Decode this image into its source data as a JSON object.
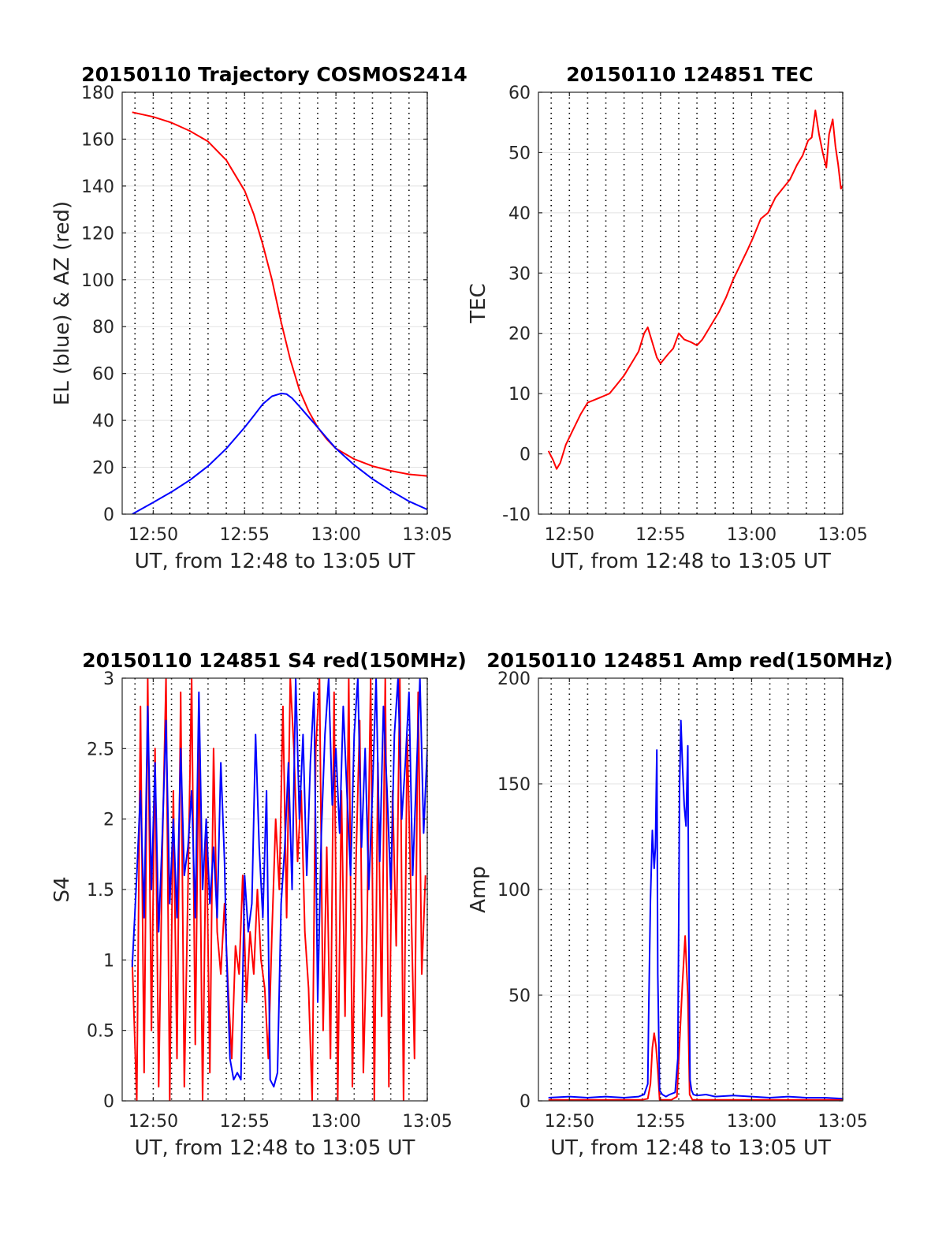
{
  "chart_data": [
    {
      "type": "line",
      "title": "20150110 Trajectory COSMOS2414",
      "xlabel": "UT, from 12:48 to 13:05 UT",
      "ylabel": "EL (blue) & AZ (red)",
      "x_unit": "minutes after 12:00 UT",
      "xlim": [
        48.3,
        65
      ],
      "ylim": [
        0,
        180
      ],
      "xticks": [
        "12:50",
        "12:55",
        "13:00",
        "13:05"
      ],
      "yticks": [
        "0",
        "20",
        "40",
        "60",
        "80",
        "100",
        "120",
        "140",
        "160",
        "180"
      ],
      "grid": "y major grid; dotted vertical lines every minute",
      "series": [
        {
          "color": "#ff0000",
          "x": [
            48.85,
            50,
            51,
            52,
            53,
            54,
            55,
            55.5,
            56,
            56.5,
            57,
            57.5,
            58,
            58.5,
            59,
            59.5,
            60,
            61,
            62,
            63,
            64,
            65
          ],
          "y": [
            171.5,
            169.5,
            167,
            163.5,
            159,
            151,
            138,
            128,
            115,
            100,
            82,
            66,
            53,
            44,
            37,
            32,
            28,
            23.5,
            20.5,
            18.5,
            17,
            16.3
          ]
        },
        {
          "color": "#0000ff",
          "x": [
            48.85,
            50,
            51,
            52,
            53,
            54,
            55,
            55.5,
            56,
            56.5,
            57,
            57.3,
            57.6,
            58,
            58.5,
            59,
            59.5,
            60,
            61,
            62,
            63,
            64,
            65
          ],
          "y": [
            0,
            5,
            9.5,
            14.5,
            20.5,
            28,
            37,
            42,
            47,
            50.3,
            51.5,
            51.2,
            49.5,
            46,
            41.5,
            37,
            32.5,
            28,
            21,
            15,
            10,
            5.5,
            2
          ]
        }
      ]
    },
    {
      "type": "line",
      "title": "20150110 124851 TEC",
      "xlabel": "UT, from 12:48 to 13:05 UT",
      "ylabel": "TEC",
      "x_unit": "minutes after 12:00 UT",
      "xlim": [
        48.3,
        65
      ],
      "ylim": [
        -10,
        60
      ],
      "xticks": [
        "12:50",
        "12:55",
        "13:00",
        "13:05"
      ],
      "yticks": [
        "-10",
        "0",
        "10",
        "20",
        "30",
        "40",
        "50",
        "60"
      ],
      "grid": "y major grid; dotted vertical lines every minute",
      "series": [
        {
          "color": "#ff0000",
          "x": [
            48.85,
            49.1,
            49.3,
            49.5,
            49.8,
            50.2,
            50.6,
            51,
            51.4,
            51.8,
            52.2,
            52.6,
            53,
            53.4,
            53.8,
            54.1,
            54.3,
            54.6,
            54.8,
            55,
            55.4,
            55.7,
            56,
            56.3,
            56.7,
            57,
            57.3,
            57.6,
            57.9,
            58.2,
            58.6,
            59,
            59.4,
            59.8,
            60.1,
            60.5,
            60.9,
            61.3,
            61.7,
            62.1,
            62.5,
            62.8,
            63.1,
            63.3,
            63.5,
            63.7,
            63.9,
            64.1,
            64.25,
            64.45,
            64.6,
            64.75,
            64.9,
            65
          ],
          "y": [
            0.5,
            -1,
            -2.5,
            -1.5,
            1.5,
            4,
            6.5,
            8.5,
            9,
            9.5,
            10,
            11.5,
            13,
            15,
            17,
            20,
            21,
            18,
            16,
            15,
            16.5,
            17.5,
            20,
            19,
            18.5,
            18,
            19,
            20.5,
            22,
            23.5,
            26,
            29,
            31.5,
            34,
            36,
            39,
            40,
            42.5,
            44,
            45.5,
            48,
            49.5,
            52,
            52.5,
            57,
            53,
            50,
            47.5,
            53,
            55.5,
            51,
            48,
            44,
            44.5
          ]
        }
      ]
    },
    {
      "type": "line",
      "title": "20150110 124851 S4 red(150MHz)",
      "xlabel": "UT, from 12:48 to 13:05 UT",
      "ylabel": "S4",
      "x_unit": "minutes after 12:00 UT",
      "xlim": [
        48.3,
        65
      ],
      "ylim": [
        0,
        3
      ],
      "xticks": [
        "12:50",
        "12:55",
        "13:00",
        "13:05"
      ],
      "yticks": [
        "0",
        "0.5",
        "1",
        "1.5",
        "2",
        "2.5",
        "3"
      ],
      "grid": "y major grid; dotted vertical lines every minute",
      "series": [
        {
          "color": "#ff0000",
          "x": [
            48.85,
            49.1,
            49.3,
            49.5,
            49.7,
            49.9,
            50.1,
            50.3,
            50.5,
            50.7,
            50.9,
            51.1,
            51.3,
            51.5,
            51.7,
            51.9,
            52.1,
            52.3,
            52.5,
            52.7,
            52.9,
            53.1,
            53.3,
            53.5,
            53.7,
            53.9,
            54.1,
            54.3,
            54.5,
            54.7,
            54.9,
            55.1,
            55.3,
            55.5,
            55.7,
            55.9,
            56.1,
            56.3,
            56.5,
            56.7,
            56.9,
            57.1,
            57.3,
            57.5,
            57.7,
            57.9,
            58.1,
            58.3,
            58.5,
            58.7,
            58.9,
            59.1,
            59.3,
            59.5,
            59.7,
            59.9,
            60.1,
            60.3,
            60.5,
            60.7,
            60.9,
            61.1,
            61.3,
            61.5,
            61.7,
            61.9,
            62.1,
            62.3,
            62.5,
            62.7,
            62.9,
            63.1,
            63.3,
            63.5,
            63.7,
            63.9,
            64.1,
            64.3,
            64.5,
            64.7,
            64.9
          ],
          "y": [
            1,
            0,
            2.8,
            0.2,
            3,
            0.5,
            2.5,
            0.1,
            1.8,
            3,
            0,
            2.2,
            0.3,
            2.9,
            0.1,
            1.5,
            3,
            0.4,
            2.6,
            0,
            2,
            0.2,
            2.5,
            1.2,
            0.9,
            1.4,
            0.8,
            0.3,
            1.1,
            0.9,
            1.6,
            0.7,
            1.2,
            0.9,
            1.5,
            1,
            0.8,
            0.3,
            1.2,
            2,
            1.5,
            2.8,
            1.3,
            3,
            2.5,
            1.7,
            2.2,
            1.2,
            0.8,
            0,
            2.5,
            3,
            0.5,
            1.8,
            0.3,
            2.9,
            0,
            2.2,
            0.6,
            3,
            0.1,
            1.7,
            2.7,
            0.2,
            1.2,
            3,
            0,
            2.4,
            0.6,
            3,
            0.1,
            2.2,
            1.1,
            3,
            0,
            2.6,
            1.5,
            0.3,
            2.9,
            0.9,
            1.6
          ]
        },
        {
          "color": "#0000ff",
          "x": [
            48.85,
            49.1,
            49.3,
            49.5,
            49.7,
            49.9,
            50.1,
            50.3,
            50.5,
            50.7,
            50.9,
            51.1,
            51.3,
            51.5,
            51.7,
            51.9,
            52.1,
            52.3,
            52.5,
            52.7,
            52.9,
            53.1,
            53.3,
            53.5,
            53.7,
            53.9,
            54,
            54.2,
            54.4,
            54.6,
            54.8,
            55,
            55.2,
            55.4,
            55.6,
            55.8,
            56,
            56.2,
            56.4,
            56.6,
            56.8,
            57,
            57.2,
            57.4,
            57.6,
            57.8,
            58,
            58.2,
            58.4,
            58.6,
            58.8,
            59,
            59.2,
            59.4,
            59.6,
            59.8,
            60,
            60.2,
            60.4,
            60.6,
            60.8,
            61,
            61.2,
            61.4,
            61.6,
            61.8,
            62,
            62.2,
            62.4,
            62.6,
            62.8,
            63,
            63.2,
            63.4,
            63.6,
            63.8,
            64,
            64.2,
            64.4,
            64.6,
            64.8,
            65
          ],
          "y": [
            0.95,
            1.6,
            2.2,
            1.3,
            2.8,
            1.5,
            2.4,
            1.2,
            1.9,
            2.7,
            1.4,
            2,
            1.3,
            2.5,
            1.6,
            1.8,
            2.2,
            1.3,
            2.9,
            1.5,
            2,
            1.4,
            1.8,
            1.3,
            2.4,
            1.7,
            1.1,
            0.3,
            0.15,
            0.2,
            0.15,
            1.6,
            1.2,
            1.4,
            2.6,
            1.8,
            1.3,
            2.2,
            0.15,
            0.1,
            0.2,
            1.4,
            1.8,
            2.4,
            1.5,
            3,
            2,
            2.6,
            1.6,
            2.4,
            2.9,
            0.7,
            1.9,
            2.6,
            3,
            2.1,
            2.5,
            1.9,
            2.8,
            2.2,
            1.6,
            2.6,
            3,
            1.8,
            2.5,
            1.5,
            2.2,
            3,
            1.7,
            2.8,
            2.2,
            1.5,
            2.6,
            3,
            2,
            2.4,
            2.9,
            1.6,
            2.3,
            3,
            1.9,
            2.5
          ]
        }
      ]
    },
    {
      "type": "line",
      "title": "20150110 124851 Amp red(150MHz)",
      "xlabel": "UT, from 12:48 to 13:05 UT",
      "ylabel": "Amp",
      "x_unit": "minutes after 12:00 UT",
      "xlim": [
        48.3,
        65
      ],
      "ylim": [
        0,
        200
      ],
      "xticks": [
        "12:50",
        "12:55",
        "13:00",
        "13:05"
      ],
      "yticks": [
        "0",
        "50",
        "100",
        "150",
        "200"
      ],
      "grid": "y major grid; dotted vertical lines every minute",
      "series": [
        {
          "color": "#ff0000",
          "x": [
            48.85,
            54,
            54.3,
            54.45,
            54.55,
            54.65,
            54.75,
            54.85,
            54.95,
            55.2,
            55.6,
            55.9,
            56.05,
            56.2,
            56.35,
            56.5,
            56.6,
            56.75,
            57,
            65
          ],
          "y": [
            0.5,
            0.5,
            1,
            8,
            25,
            32,
            26,
            15,
            0.5,
            0.5,
            0.5,
            2,
            28,
            55,
            78,
            50,
            3,
            0.5,
            0.5,
            0.5
          ]
        },
        {
          "color": "#0000ff",
          "x": [
            48.85,
            50,
            51,
            52,
            53,
            53.8,
            54.1,
            54.3,
            54.35,
            54.45,
            54.55,
            54.65,
            54.72,
            54.8,
            54.85,
            54.95,
            55.1,
            55.3,
            55.5,
            55.8,
            55.95,
            56.05,
            56.12,
            56.2,
            56.3,
            56.4,
            56.5,
            56.55,
            56.62,
            56.7,
            56.8,
            57,
            57.5,
            58,
            59,
            60,
            61,
            62,
            63,
            64,
            65
          ],
          "y": [
            1.5,
            2,
            1.5,
            2,
            1.5,
            2,
            3,
            8,
            40,
            95,
            128,
            110,
            120,
            166,
            60,
            5,
            3,
            2,
            3,
            4,
            20,
            150,
            180,
            160,
            140,
            130,
            168,
            80,
            10,
            5,
            3,
            2.5,
            3,
            2,
            2.5,
            2,
            1.5,
            2,
            1.5,
            1.5,
            1
          ]
        }
      ]
    }
  ]
}
